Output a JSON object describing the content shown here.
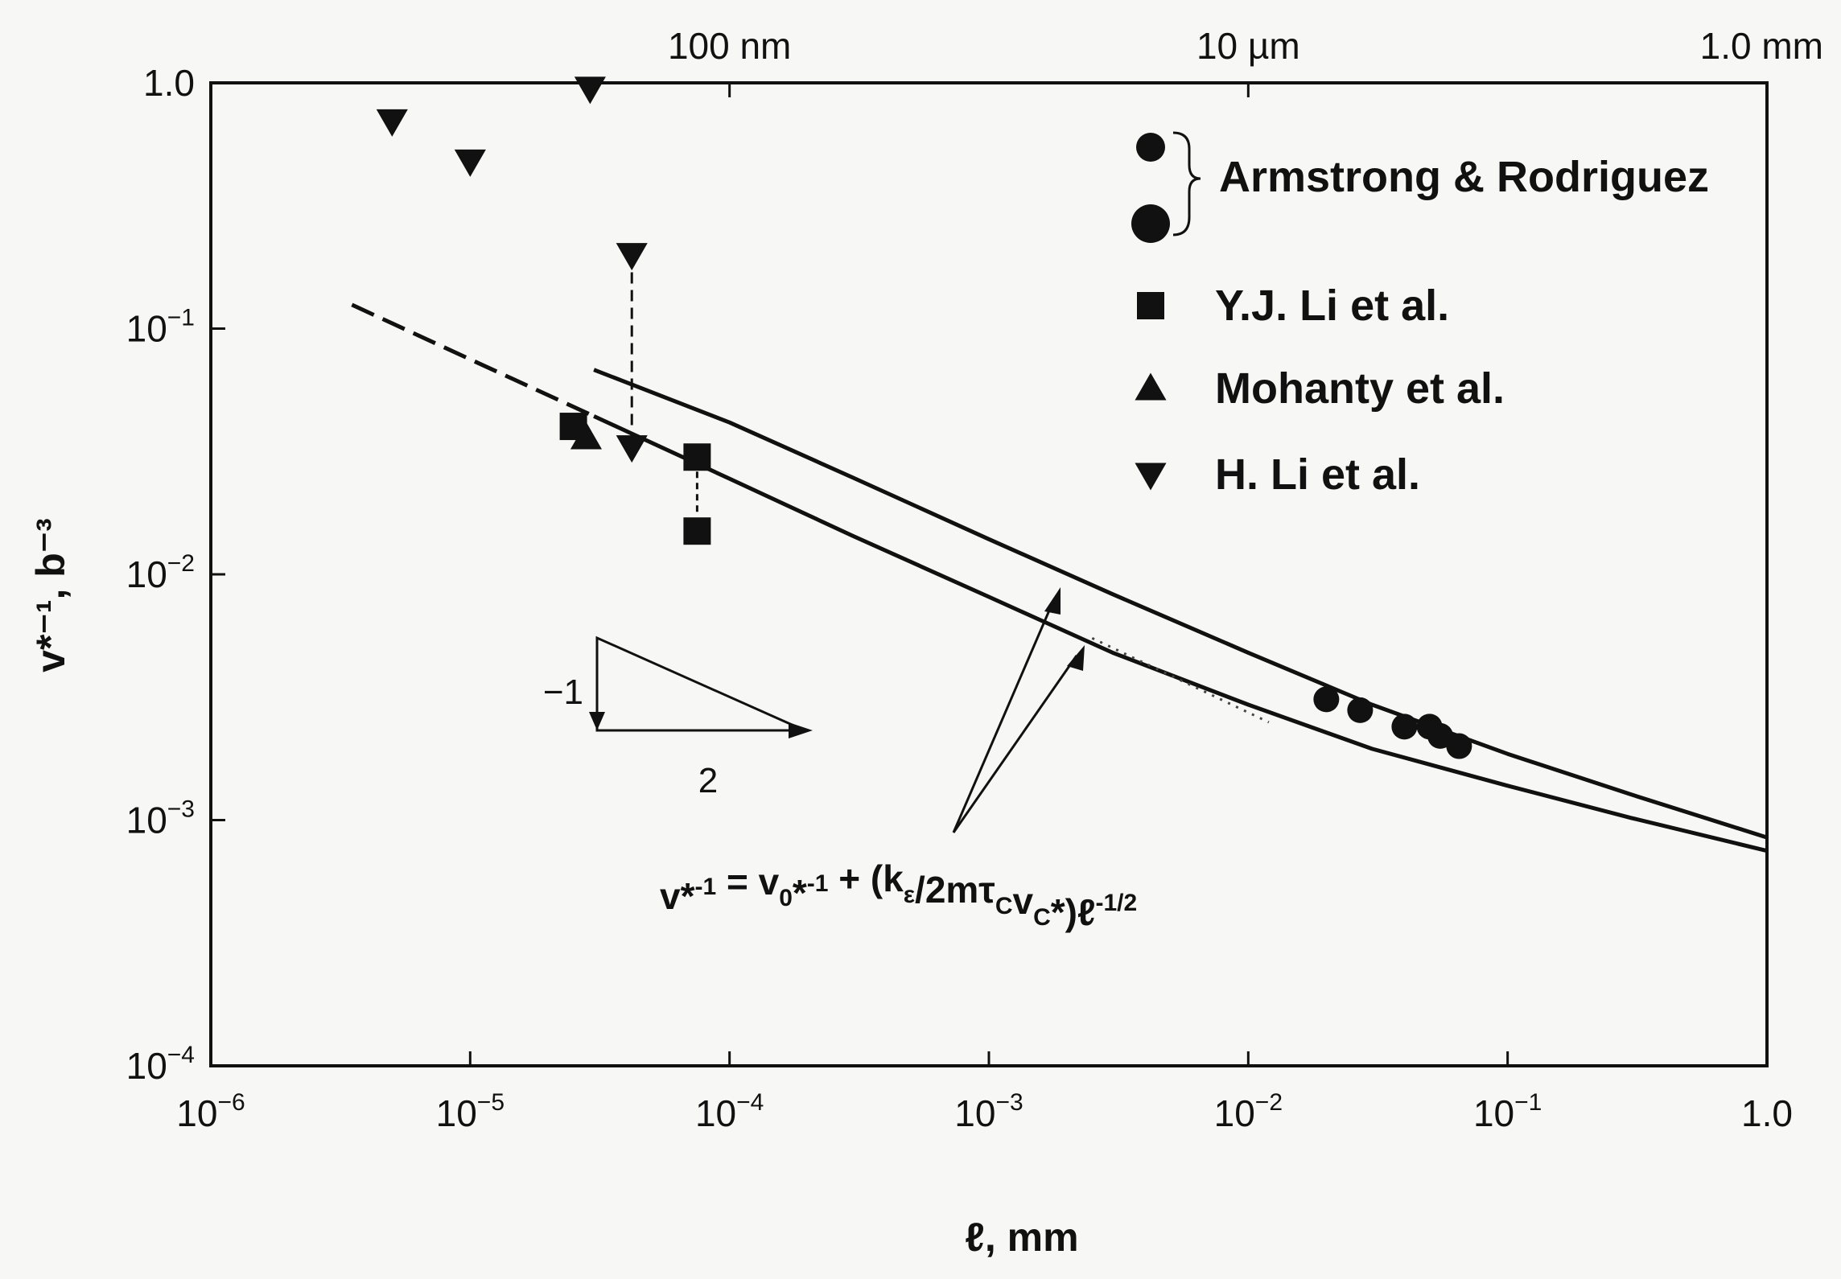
{
  "chart_data": {
    "type": "scatter",
    "x_scale": "log",
    "y_scale": "log",
    "xlim": [
      1e-06,
      1.0
    ],
    "ylim": [
      0.0001,
      1.0
    ],
    "xlabel": "ℓ, mm",
    "ylabel": "v*⁻¹, b⁻³",
    "x_ticks": [
      {
        "value": 1e-06,
        "base": "10",
        "exp": "-6"
      },
      {
        "value": 1e-05,
        "base": "10",
        "exp": "-5"
      },
      {
        "value": 0.0001,
        "base": "10",
        "exp": "-4"
      },
      {
        "value": 0.001,
        "base": "10",
        "exp": "-3"
      },
      {
        "value": 0.01,
        "base": "10",
        "exp": "-2"
      },
      {
        "value": 0.1,
        "base": "10",
        "exp": "-1"
      },
      {
        "value": 1.0,
        "base": "1.0",
        "exp": ""
      }
    ],
    "y_ticks": [
      {
        "value": 0.0001,
        "base": "10",
        "exp": "-4"
      },
      {
        "value": 0.001,
        "base": "10",
        "exp": "-3"
      },
      {
        "value": 0.01,
        "base": "10",
        "exp": "-2"
      },
      {
        "value": 0.1,
        "base": "10",
        "exp": "-1"
      },
      {
        "value": 1.0,
        "base": "1.0",
        "exp": ""
      }
    ],
    "top_axis_ticks": [
      {
        "value": 0.0001,
        "label": "100 nm"
      },
      {
        "value": 0.01,
        "label": "10 µm"
      },
      {
        "value": 1.0,
        "label": "1.0 mm"
      }
    ],
    "series": [
      {
        "name": "Armstrong & Rodriguez",
        "marker": "circle",
        "points": [
          [
            0.02,
            0.0031
          ],
          [
            0.027,
            0.0028
          ],
          [
            0.04,
            0.0024
          ],
          [
            0.05,
            0.0024
          ],
          [
            0.055,
            0.0022
          ],
          [
            0.065,
            0.002
          ]
        ]
      },
      {
        "name": "Y.J. Li et al.",
        "marker": "square",
        "points": [
          [
            2.5e-05,
            0.04
          ],
          [
            7.5e-05,
            0.03
          ],
          [
            7.5e-05,
            0.015
          ]
        ]
      },
      {
        "name": "Mohanty et al.",
        "marker": "triangle-up",
        "points": [
          [
            2.8e-05,
            0.036
          ]
        ]
      },
      {
        "name": "H. Li et al.",
        "marker": "triangle-down",
        "points": [
          [
            5e-06,
            0.7
          ],
          [
            1e-05,
            0.48
          ],
          [
            2.9e-05,
            0.95
          ],
          [
            4.2e-05,
            0.2
          ],
          [
            4.2e-05,
            0.033
          ]
        ]
      }
    ],
    "curves": [
      {
        "style": "solid",
        "x": [
          3e-05,
          0.0001,
          0.0003,
          0.001,
          0.003,
          0.01,
          0.03,
          0.1,
          0.3,
          1.0
        ],
        "y": [
          0.068,
          0.0415,
          0.0247,
          0.0139,
          0.0083,
          0.0048,
          0.00295,
          0.00186,
          0.00127,
          0.00085
        ]
      },
      {
        "style": "dashed",
        "x": [
          3.5e-06,
          1e-05,
          3e-05
        ],
        "y": [
          0.125,
          0.075,
          0.044
        ]
      },
      {
        "style": "solid",
        "x": [
          3e-05,
          0.0001,
          0.0003,
          0.001,
          0.003,
          0.01,
          0.03,
          0.1,
          0.3,
          1.0
        ],
        "y": [
          0.044,
          0.0245,
          0.0143,
          0.0081,
          0.0048,
          0.00295,
          0.00195,
          0.00138,
          0.00102,
          0.00075
        ]
      },
      {
        "style": "dotted",
        "x": [
          0.0025,
          0.012
        ],
        "y": [
          0.0055,
          0.0025
        ]
      }
    ],
    "slope_triangle": {
      "rise_label": "−1",
      "run_label": "2"
    },
    "annotation_formula": {
      "parts": [
        {
          "t": "v*",
          "s": "n"
        },
        {
          "t": "-1",
          "s": "sup"
        },
        {
          "t": " = v",
          "s": "n"
        },
        {
          "t": "0",
          "s": "sub"
        },
        {
          "t": "*",
          "s": "n"
        },
        {
          "t": "-1",
          "s": "sup"
        },
        {
          "t": " + (k",
          "s": "n"
        },
        {
          "t": "ε",
          "s": "sub"
        },
        {
          "t": "/2mτ",
          "s": "n"
        },
        {
          "t": "C",
          "s": "sub"
        },
        {
          "t": "v",
          "s": "n"
        },
        {
          "t": "C",
          "s": "sub"
        },
        {
          "t": "*)ℓ",
          "s": "n"
        },
        {
          "t": "-1/2",
          "s": "sup"
        }
      ]
    }
  }
}
